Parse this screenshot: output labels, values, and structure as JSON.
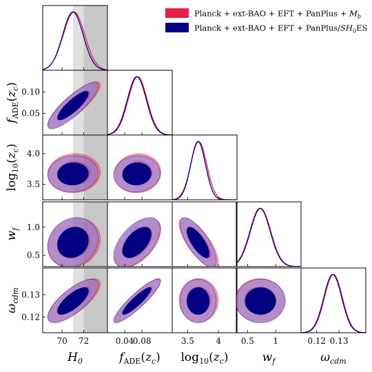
{
  "chart_data": {
    "type": "triangle-corner",
    "parameters": [
      {
        "id": "H0",
        "label": "H_0",
        "range": [
          68.2,
          74.2
        ],
        "ticks": [
          70,
          72
        ]
      },
      {
        "id": "fADE",
        "label": "f_ADE(z_c)",
        "range": [
          0.0,
          0.15
        ],
        "ticks": [
          0.04,
          0.08
        ],
        "ylabel_ticks": [
          0.05,
          0.1
        ]
      },
      {
        "id": "log10zc",
        "label": "log10(z_c)",
        "range": [
          3.25,
          4.3
        ],
        "ticks": [
          3.5,
          4.0
        ],
        "ylabel_ticks": [
          3.5,
          4.0
        ]
      },
      {
        "id": "wf",
        "label": "w_f",
        "range": [
          0.3,
          1.45
        ],
        "ticks": [
          0.5,
          1.0
        ],
        "ylabel_ticks": [
          0.5,
          1.0
        ]
      },
      {
        "id": "omega_cdm",
        "label": "omega_cdm",
        "range": [
          0.113,
          0.142
        ],
        "ticks": [
          0.12,
          0.13
        ],
        "ylabel_ticks": [
          0.12,
          0.13
        ]
      }
    ],
    "series": [
      {
        "name": "Planck + ext-BAO + EFT + PanPlus + M_b",
        "color": "#e8204a",
        "means": {
          "H0": 71.1,
          "fADE": 0.07,
          "log10zc": 3.68,
          "wf": 0.72,
          "omega_cdm": 0.1275
        },
        "sigmas": {
          "H0": 1.0,
          "fADE": 0.022,
          "log10zc": 0.13,
          "wf": 0.18,
          "omega_cdm": 0.004
        }
      },
      {
        "name": "Planck + ext-BAO + EFT + PanPlus/SH0ES",
        "color": "#000080",
        "means": {
          "H0": 71.0,
          "fADE": 0.068,
          "log10zc": 3.67,
          "wf": 0.73,
          "omega_cdm": 0.1272
        },
        "sigmas": {
          "H0": 0.95,
          "fADE": 0.022,
          "log10zc": 0.12,
          "wf": 0.18,
          "omega_cdm": 0.004
        }
      }
    ],
    "correlations": {
      "fADE|H0": 0.85,
      "log10zc|H0": 0.05,
      "wf|H0": 0.15,
      "omega_cdm|H0": 0.75,
      "log10zc|fADE": 0.05,
      "wf|fADE": 0.55,
      "omega_cdm|fADE": 0.9,
      "wf|log10zc": -0.75,
      "omega_cdm|log10zc": 0.0,
      "omega_cdm|wf": 0.0
    },
    "prior_bands": {
      "H0": {
        "inner": [
          71.0,
          72.0
        ],
        "outer": [
          72.0,
          74.2
        ]
      }
    },
    "legend_position": "top-right"
  },
  "legend": {
    "entry1": {
      "prefix": "Planck + ext-BAO + EFT + PanPlus + ",
      "var": "M",
      "sub": "b"
    },
    "entry2": {
      "prefix": "Planck + ext-BAO + EFT + PanPlus/",
      "var": "SH",
      "sub": "0",
      "suffix": "ES"
    }
  },
  "labels": {
    "H0": {
      "main": "H",
      "sub": "0"
    },
    "fADE": {
      "main": "f",
      "sub": "ADE",
      "rest": "(z",
      "rest_sub": "c",
      "close": ")"
    },
    "log10zc": {
      "main": "log",
      "sub": "10",
      "rest": "(z",
      "rest_sub": "c",
      "close": ")"
    },
    "wf": {
      "main": "w",
      "sub": "f"
    },
    "omega": {
      "main": "ω",
      "sub": "cdm"
    }
  },
  "colors": {
    "red": "#e8204a",
    "blue": "#000080",
    "band_inner": "#e0e0e0",
    "band_outer": "#c8c8c8"
  }
}
